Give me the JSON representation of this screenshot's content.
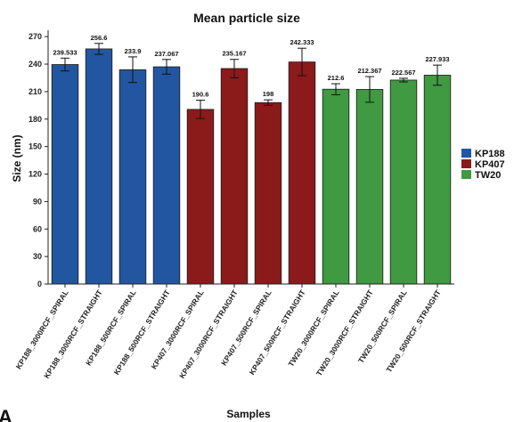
{
  "panel_letter": "A",
  "chart_data": {
    "type": "bar",
    "title": "Mean particle size",
    "xlabel": "Samples",
    "ylabel": "Size (nm)",
    "ylim": [
      0,
      275
    ],
    "yticks": [
      0,
      30,
      60,
      90,
      120,
      150,
      180,
      210,
      240,
      270
    ],
    "categories": [
      "KP188_3000RCF_SPIRAL",
      "KP188_3000RCF_STRAIGHT",
      "KP188_500RCF_SPIRAL",
      "KP188_500RCF_STRAIGHT",
      "KP407_3000RCF_SPIRAL",
      "KP407_3000RCF_STRAIGHT",
      "KP407_500RCF_SPIRAL",
      "KP407_500RCF_STRAIGHT",
      "TW20_3000RCF_SPIRAL",
      "TW20_3000RCF_STRAIGHT",
      "TW20_500RCF_SPIRAL",
      "TW20_500RCF_STRAIGHT"
    ],
    "values": [
      239.533,
      256.6,
      233.9,
      237.067,
      190.6,
      235.167,
      198,
      242.333,
      212.6,
      212.367,
      222.567,
      227.933
    ],
    "value_labels": [
      "239.533",
      "256.6",
      "233.9",
      "237.067",
      "190.6",
      "235.167",
      "198",
      "242.333",
      "212.6",
      "212.367",
      "222.567",
      "227.933"
    ],
    "errors": [
      7,
      6,
      14,
      8,
      10,
      10,
      3,
      15,
      6,
      14,
      2,
      11
    ],
    "groups": [
      "KP188",
      "KP188",
      "KP188",
      "KP188",
      "KP407",
      "KP407",
      "KP407",
      "KP407",
      "TW20",
      "TW20",
      "TW20",
      "TW20"
    ],
    "legend": [
      {
        "name": "KP188",
        "color": "#2356a0"
      },
      {
        "name": "KP407",
        "color": "#8b1a1a"
      },
      {
        "name": "TW20",
        "color": "#3f9a41"
      }
    ],
    "legend_position": "right",
    "grid": false
  }
}
